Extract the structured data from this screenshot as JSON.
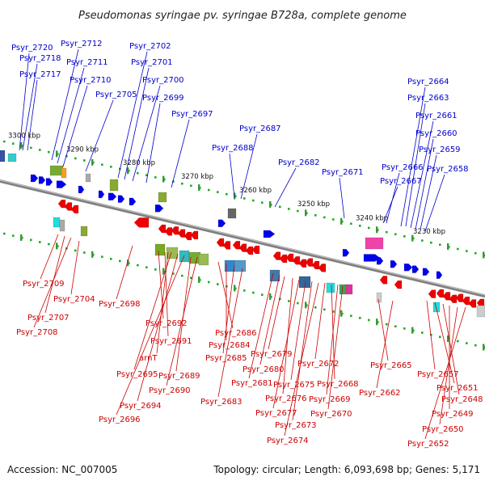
{
  "title": "Pseudomonas syringae pv. syringae B728a, complete genome",
  "footer": {
    "accession": "Accession: NC_007005",
    "summary": "Topology: circular; Length: 6,093,698 bp; Genes: 5,171"
  },
  "colors": {
    "forward_strand": "#0000ee",
    "reverse_strand": "#ee0000",
    "backbone": "#808080",
    "ruler_dots": "#22aa22",
    "label_forward": "#0000cc",
    "label_reverse": "#cc0000"
  },
  "ruler_ticks": [
    "3300 kbp",
    "3290 kbp",
    "3280 kbp",
    "3270 kbp",
    "3260 kbp",
    "3250 kbp",
    "3240 kbp",
    "3230 kbp"
  ],
  "forward_labels": [
    "Psyr_2720",
    "Psyr_2718",
    "Psyr_2717",
    "Psyr_2712",
    "Psyr_2711",
    "Psyr_2710",
    "Psyr_2705",
    "Psyr_2702",
    "Psyr_2701",
    "Psyr_2700",
    "Psyr_2699",
    "Psyr_2697",
    "Psyr_2688",
    "Psyr_2687",
    "Psyr_2682",
    "Psyr_2671",
    "Psyr_2667",
    "Psyr_2666",
    "Psyr_2664",
    "Psyr_2663",
    "Psyr_2661",
    "Psyr_2660",
    "Psyr_2659",
    "Psyr_2658"
  ],
  "reverse_labels": [
    "Psyr_2709",
    "Psyr_2707",
    "Psyr_2708",
    "Psyr_2704",
    "Psyr_2698",
    "Psyr_2692",
    "Psyr_2691",
    "arnT",
    "Psyr_2695",
    "Psyr_2694",
    "Psyr_2696",
    "Psyr_2689",
    "Psyr_2690",
    "Psyr_2686",
    "Psyr_2684",
    "Psyr_2685",
    "Psyr_2683",
    "Psyr_2681",
    "Psyr_2680",
    "Psyr_2679",
    "Psyr_2676",
    "Psyr_2677",
    "Psyr_2675",
    "Psyr_2673",
    "Psyr_2674",
    "Psyr_2672",
    "Psyr_2668",
    "Psyr_2669",
    "Psyr_2670",
    "Psyr_2665",
    "Psyr_2662",
    "Psyr_2657",
    "Psyr_2651",
    "Psyr_2648",
    "Psyr_2649",
    "Psyr_2650",
    "Psyr_2652"
  ]
}
